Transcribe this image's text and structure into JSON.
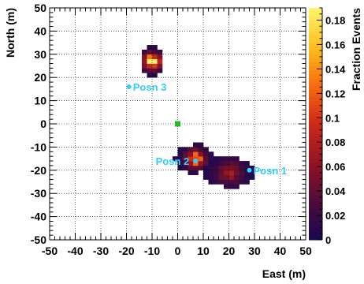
{
  "chart_data": {
    "type": "heatmap",
    "title": "",
    "xlabel": "East (m)",
    "ylabel": "North (m)",
    "xlim": [
      -50,
      50
    ],
    "ylim": [
      -50,
      50
    ],
    "x_ticks": [
      "-50",
      "-40",
      "-30",
      "-20",
      "-10",
      "0",
      "10",
      "20",
      "30",
      "40",
      "50"
    ],
    "y_ticks": [
      "-50",
      "-40",
      "-30",
      "-20",
      "-10",
      "0",
      "10",
      "20",
      "30",
      "40",
      "50"
    ],
    "grid": true,
    "bin_size_m": 2,
    "colorbar": {
      "label": "Fraction Events",
      "range": [
        0,
        0.19
      ],
      "ticks": [
        "0",
        "0.02",
        "0.04",
        "0.06",
        "0.08",
        "0.1",
        "0.12",
        "0.14",
        "0.16",
        "0.18"
      ]
    },
    "clusters": [
      {
        "center": [
          -10,
          27
        ],
        "rx": 4,
        "ry": 6,
        "peak": 0.19,
        "spread": 2.2
      },
      {
        "center": [
          7,
          -15
        ],
        "rx": 8,
        "ry": 6,
        "peak": 0.13,
        "spread": 2.6
      },
      {
        "center": [
          20,
          -21
        ],
        "rx": 10,
        "ry": 6,
        "peak": 0.06,
        "spread": 3.6
      }
    ],
    "markers": [
      {
        "label": "Posn 1",
        "x": 28,
        "y": -20,
        "color": "#33ccff"
      },
      {
        "label": "Posn 2",
        "x": 7,
        "y": -16,
        "color": "#33ccff"
      },
      {
        "label": "Posn 3",
        "x": -19,
        "y": 16,
        "color": "#33ccff"
      }
    ],
    "origin_marker": {
      "x": 0,
      "y": 0,
      "color": "#22bb22"
    }
  }
}
